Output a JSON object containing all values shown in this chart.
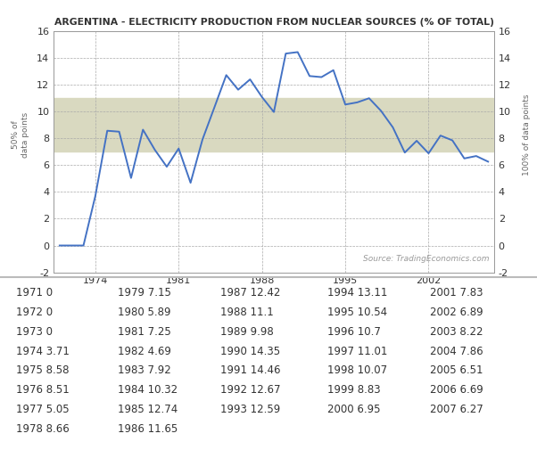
{
  "title": "ARGENTINA - ELECTRICITY PRODUCTION FROM NUCLEAR SOURCES (% OF TOTAL)",
  "years": [
    1971,
    1972,
    1973,
    1974,
    1975,
    1976,
    1977,
    1978,
    1979,
    1980,
    1981,
    1982,
    1983,
    1984,
    1985,
    1986,
    1987,
    1988,
    1989,
    1990,
    1991,
    1992,
    1993,
    1994,
    1995,
    1996,
    1997,
    1998,
    1999,
    2000,
    2001,
    2002,
    2003,
    2004,
    2005,
    2006,
    2007
  ],
  "values": [
    0,
    0,
    0,
    3.71,
    8.58,
    8.51,
    5.05,
    8.66,
    7.15,
    5.89,
    7.25,
    4.69,
    7.92,
    10.32,
    12.74,
    11.65,
    12.42,
    11.1,
    9.98,
    14.35,
    14.46,
    12.67,
    12.59,
    13.11,
    10.54,
    10.7,
    11.01,
    10.07,
    8.83,
    6.95,
    7.83,
    6.89,
    8.22,
    7.86,
    6.51,
    6.69,
    6.27
  ],
  "line_color": "#4472C4",
  "bg_color": "#FFFFFF",
  "plot_bg_color": "#FFFFFF",
  "band_color": "#D9D9C0",
  "band_low": 7.0,
  "band_high": 11.0,
  "ylim_low": -2,
  "ylim_high": 16,
  "yticks": [
    -2,
    0,
    2,
    4,
    6,
    8,
    10,
    12,
    14,
    16
  ],
  "xticks": [
    1974,
    1981,
    1988,
    1995,
    2002
  ],
  "source_text": "Source: TradingEconomics.com",
  "left_label": "50% of\ndata points",
  "right_label": "100% of data points",
  "separator_color": "#BBBBBB",
  "col_data": [
    [
      [
        "1971",
        "0"
      ],
      [
        "1972",
        "0"
      ],
      [
        "1973",
        "0"
      ],
      [
        "1974",
        "3.71"
      ],
      [
        "1975",
        "8.58"
      ],
      [
        "1976",
        "8.51"
      ],
      [
        "1977",
        "5.05"
      ],
      [
        "1978",
        "8.66"
      ]
    ],
    [
      [
        "1979",
        "7.15"
      ],
      [
        "1980",
        "5.89"
      ],
      [
        "1981",
        "7.25"
      ],
      [
        "1982",
        "4.69"
      ],
      [
        "1983",
        "7.92"
      ],
      [
        "1984",
        "10.32"
      ],
      [
        "1985",
        "12.74"
      ],
      [
        "1986",
        "11.65"
      ]
    ],
    [
      [
        "1987",
        "12.42"
      ],
      [
        "1988",
        "11.1"
      ],
      [
        "1989",
        "9.98"
      ],
      [
        "1990",
        "14.35"
      ],
      [
        "1991",
        "14.46"
      ],
      [
        "1992",
        "12.67"
      ],
      [
        "1993",
        "12.59"
      ],
      [
        "",
        ""
      ]
    ],
    [
      [
        "1994",
        "13.11"
      ],
      [
        "1995",
        "10.54"
      ],
      [
        "1996",
        "10.7"
      ],
      [
        "1997",
        "11.01"
      ],
      [
        "1998",
        "10.07"
      ],
      [
        "1999",
        "8.83"
      ],
      [
        "2000",
        "6.95"
      ],
      [
        "",
        ""
      ]
    ],
    [
      [
        "2001",
        "7.83"
      ],
      [
        "2002",
        "6.89"
      ],
      [
        "2003",
        "8.22"
      ],
      [
        "2004",
        "7.86"
      ],
      [
        "2005",
        "6.51"
      ],
      [
        "2006",
        "6.69"
      ],
      [
        "2007",
        "6.27"
      ],
      [
        "",
        ""
      ]
    ]
  ]
}
